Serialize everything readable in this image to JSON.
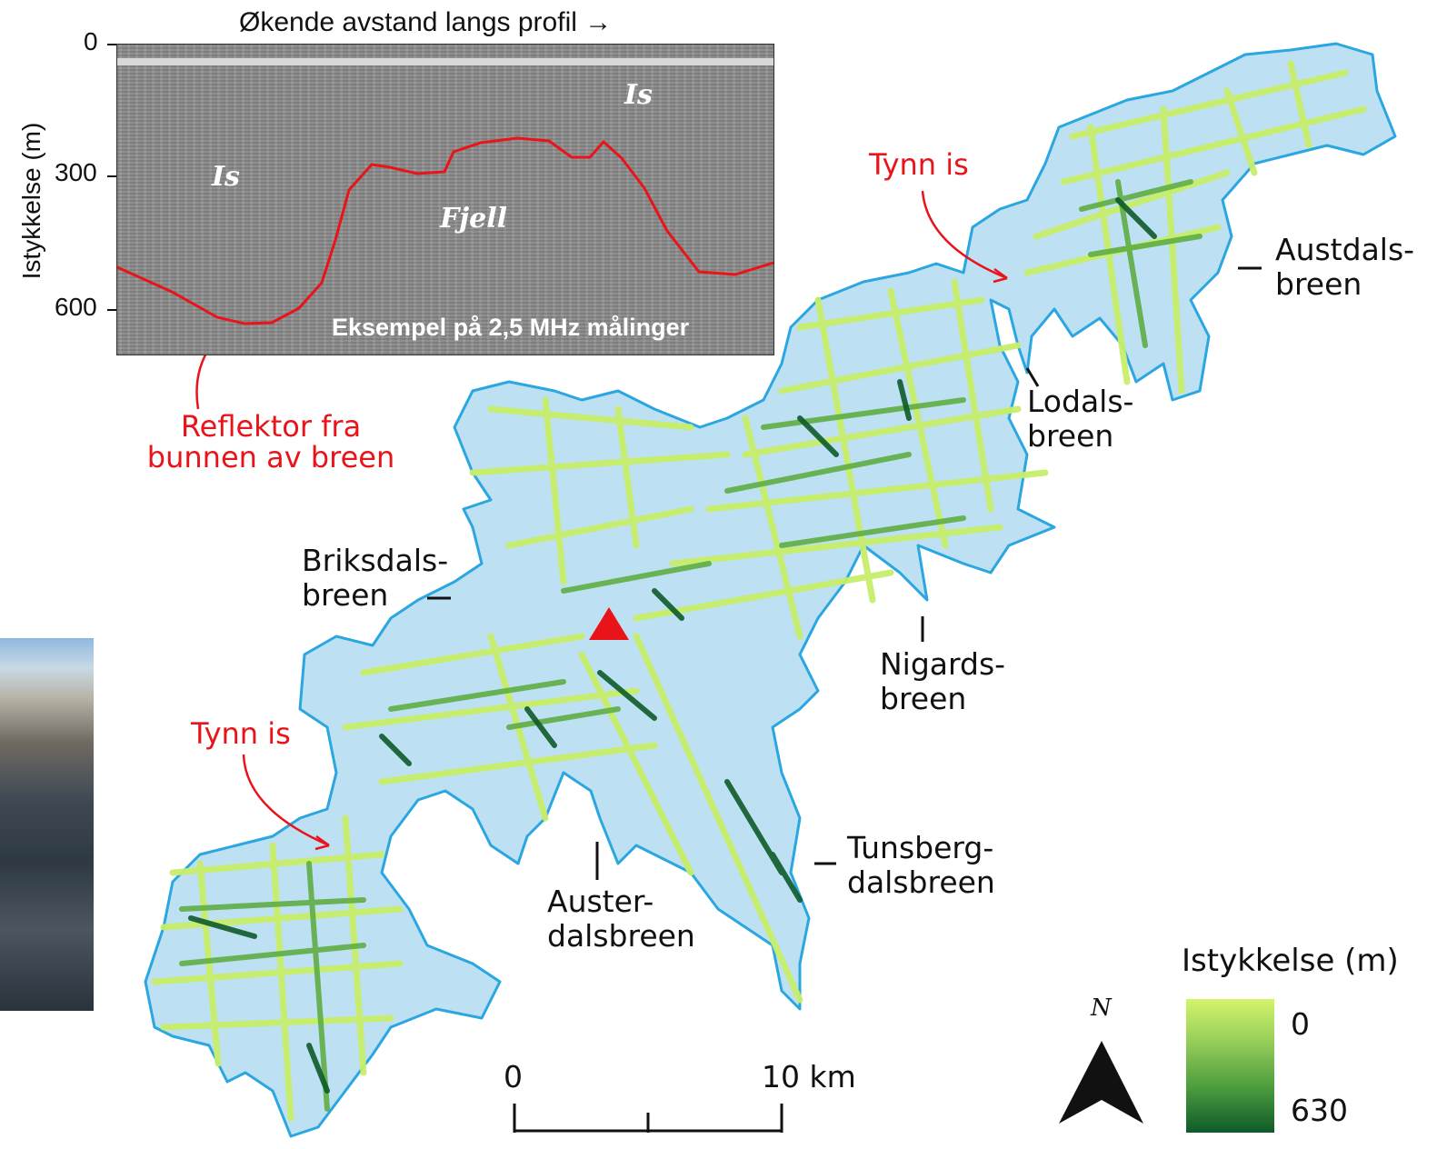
{
  "radar_inset": {
    "top_label": "Økende avstand langs profil →",
    "y_axis_label": "Istykkelse (m)",
    "y_ticks": [
      "0",
      "300",
      "600"
    ],
    "ice_label_1": "Is",
    "ice_label_2": "Is",
    "bedrock_label": "Fjell",
    "caption": "Eksempel på 2,5 MHz målinger",
    "reflector_color": "#e8141a"
  },
  "annotations": {
    "reflector_note": "Reflektor fra\nbunnen av breen",
    "thin_ice_1": "Tynn is",
    "thin_ice_2": "Tynn is",
    "color": "#e8141a"
  },
  "glacier_labels": {
    "austdalsbreen": "Austdals-\nbreen",
    "lodalsbreen": "Lodals-\nbreen",
    "nigardsbreen": "Nigards-\nbreen",
    "briksdalsbreen": "Briksdals-\nbreen",
    "austerdalsbreen": "Auster-\ndalsbreen",
    "tunsbergdalsbreen": "Tunsberg-\ndalsbreen"
  },
  "map_colors": {
    "glacier_fill": "#bde0f3",
    "glacier_outline": "#2aa6e0",
    "thin_track": "#c7ee6a",
    "thick_track": "#0e5a2a",
    "summit_marker": "#e8141a"
  },
  "scale_bar": {
    "start_label": "0",
    "end_label": "10 km"
  },
  "north_arrow": {
    "label": "N"
  },
  "legend": {
    "title": "Istykkelse (m)",
    "min_label": "0",
    "max_label": "630",
    "min_color": "#d4f46c",
    "max_color": "#0e5a2a"
  }
}
